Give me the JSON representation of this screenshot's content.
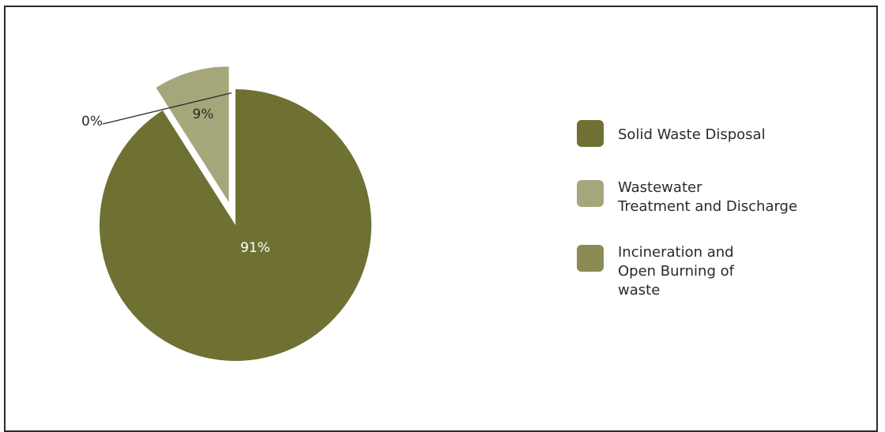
{
  "chart_data": {
    "type": "pie",
    "slices": [
      {
        "label": "Solid Waste Disposal",
        "value": 91,
        "display": "91%",
        "color": "#6e7131"
      },
      {
        "label": "Wastewater\nTreatment and Discharge",
        "value": 9,
        "display": "9%",
        "color": "#a5a77a"
      },
      {
        "label": "Incineration and\nOpen Burning of\nwaste",
        "value": 0,
        "display": "0%",
        "color": "#8a8b55"
      }
    ],
    "legend_position": "right",
    "exploded_slice": "Wastewater\nTreatment and Discharge"
  }
}
